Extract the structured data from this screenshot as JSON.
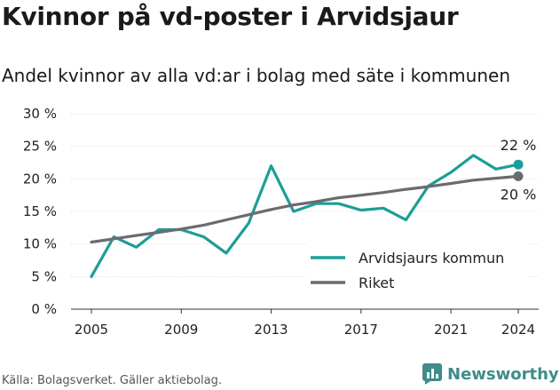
{
  "title": "Kvinnor på vd-poster i Arvidsjaur",
  "subtitle": "Andel kvinnor av alla vd:ar i bolag med säte i kommunen",
  "source": "Källa: Bolagsverket. Gäller aktiebolag.",
  "brand": "Newsworthy",
  "icons": {
    "brand_logo": "bar-chart-icon"
  },
  "chart_data": {
    "type": "line",
    "x": [
      2005,
      2006,
      2007,
      2008,
      2009,
      2010,
      2011,
      2012,
      2013,
      2014,
      2015,
      2016,
      2017,
      2018,
      2019,
      2020,
      2021,
      2022,
      2023,
      2024
    ],
    "series": [
      {
        "name": "Arvidsjaurs kommun",
        "color": "#1b9e97",
        "values": [
          5,
          11.1,
          9.5,
          12.2,
          12.2,
          11.1,
          8.6,
          13.2,
          22,
          15,
          16.2,
          16.2,
          15.2,
          15.5,
          13.7,
          18.9,
          21,
          23.6,
          21.5,
          22.2
        ]
      },
      {
        "name": "Riket",
        "color": "#6b6a70",
        "values": [
          10.3,
          10.8,
          11.3,
          11.8,
          12.3,
          12.9,
          13.7,
          14.5,
          15.3,
          16,
          16.5,
          17.1,
          17.5,
          17.9,
          18.4,
          18.8,
          19.3,
          19.8,
          20.1,
          20.4
        ]
      }
    ],
    "end_labels": [
      "22 %",
      "20 %"
    ],
    "xticks": [
      2005,
      2009,
      2013,
      2017,
      2021,
      2024
    ],
    "yticks": [
      0,
      5,
      10,
      15,
      20,
      25,
      30
    ],
    "ytick_labels": [
      "0 %",
      "5 %",
      "10 %",
      "15 %",
      "20 %",
      "25 %",
      "30 %"
    ],
    "xlim": [
      2005,
      2024
    ],
    "ylim": [
      0,
      30
    ],
    "grid": "horizontal",
    "legend_position": "bottom-right"
  }
}
